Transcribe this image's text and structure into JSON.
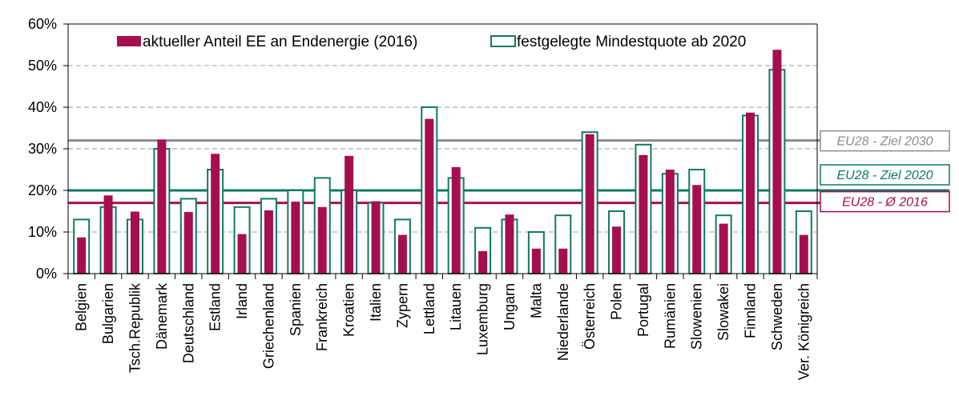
{
  "chart_data": {
    "type": "bar",
    "categories": [
      "Belgien",
      "Bulgarien",
      "Tsch.Republik",
      "Dänemark",
      "Deutschland",
      "Estland",
      "Irland",
      "Griechenland",
      "Spanien",
      "Frankreich",
      "Kroatien",
      "Italien",
      "Zypern",
      "Lettland",
      "Litauen",
      "Luxemburg",
      "Ungarn",
      "Malta",
      "Niederlande",
      "Österreich",
      "Polen",
      "Portugal",
      "Rumänien",
      "Slowenien",
      "Slowakei",
      "Finnland",
      "Schweden",
      "Ver. Königreich"
    ],
    "series": [
      {
        "name": "aktueller Anteil EE an Endenergie (2016)",
        "color": "#A50F50",
        "style": "filled",
        "values": [
          8.7,
          18.8,
          14.9,
          32.2,
          14.8,
          28.8,
          9.5,
          15.2,
          17.3,
          16.0,
          28.3,
          17.4,
          9.3,
          37.2,
          25.6,
          5.4,
          14.2,
          6.0,
          6.0,
          33.5,
          11.3,
          28.5,
          25.0,
          21.3,
          12.0,
          38.7,
          53.8,
          9.3
        ]
      },
      {
        "name": "festgelegte Mindestquote ab 2020",
        "color": "#0F7A64",
        "style": "outline",
        "values": [
          13,
          16,
          13,
          30,
          18,
          25,
          16,
          18,
          20,
          23,
          20,
          17,
          13,
          40,
          23,
          11,
          13,
          10,
          14,
          34,
          15,
          31,
          24,
          25,
          14,
          38,
          49,
          15
        ]
      }
    ],
    "reference_lines": [
      {
        "label": "EU28 - Ziel 2030",
        "value": 32,
        "color": "#8C8C8C"
      },
      {
        "label": "EU28 - Ziel 2020",
        "value": 20,
        "color": "#0F7A64"
      },
      {
        "label": "EU28 - Ø 2016",
        "value": 17,
        "color": "#A50F50"
      }
    ],
    "yticks": [
      "0%",
      "10%",
      "20%",
      "30%",
      "40%",
      "50%",
      "60%"
    ],
    "ylim": [
      0,
      60
    ],
    "grid": "horizontal dashed",
    "legend_position": "top"
  }
}
